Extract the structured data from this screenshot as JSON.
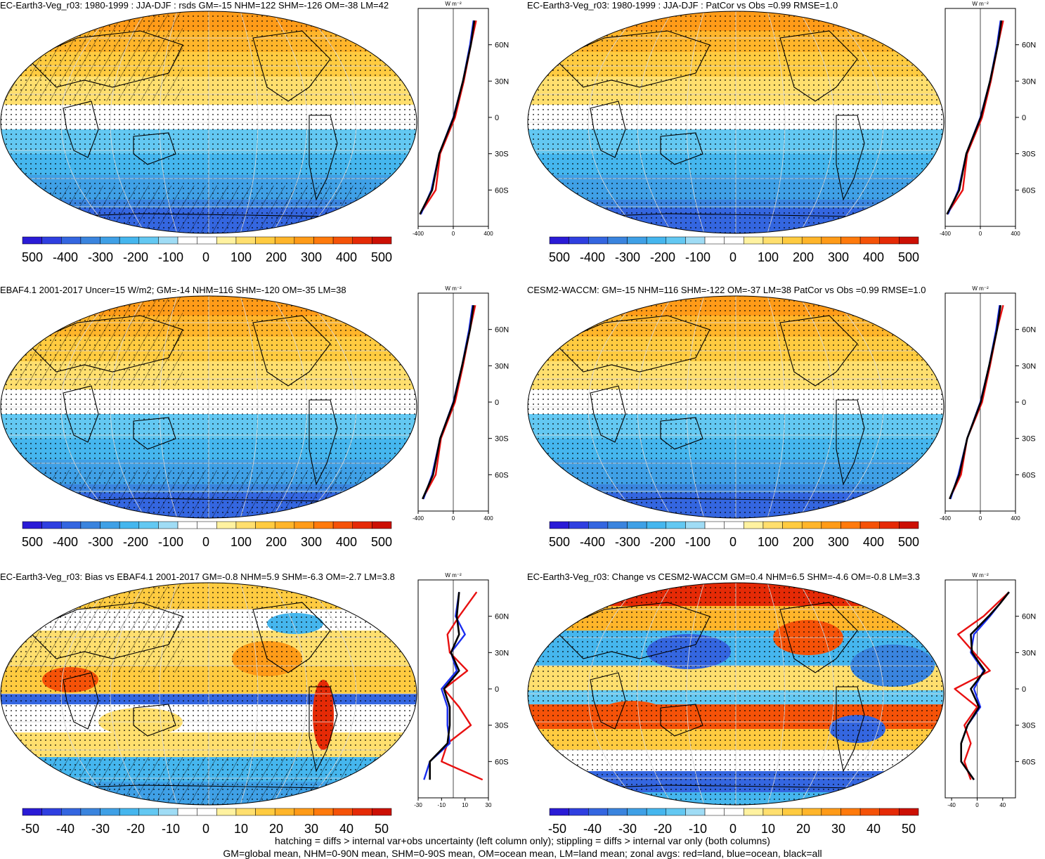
{
  "panels": [
    {
      "title": "EC-Earth3-Veg_r03: 1980-1999 : JJA-DJF : rsds GM=-15 NHM=122 SHM=-126 OM=-38 LM=42",
      "hatch": true,
      "scale": "large",
      "zonal_xticks": [
        "-400",
        "0",
        "400"
      ],
      "colorbar_labels": [
        "-500",
        "-400",
        "-300",
        "-200",
        "-100",
        "0",
        "100",
        "200",
        "300",
        "400",
        "500"
      ]
    },
    {
      "title": "EC-Earth3-Veg_r03: 1980-1999 : JJA-DJF : PatCor vs Obs =0.99 RMSE=1.0",
      "hatch": false,
      "scale": "large",
      "zonal_xticks": [
        "-400",
        "0",
        "400"
      ],
      "colorbar_labels": [
        "-500",
        "-400",
        "-300",
        "-200",
        "-100",
        "0",
        "100",
        "200",
        "300",
        "400",
        "500"
      ]
    },
    {
      "title": "EBAF4.1 2001-2017 Uncer=15 W/m2; GM=-14 NHM=116 SHM=-120 OM=-35 LM=38",
      "hatch": true,
      "scale": "large",
      "zonal_xticks": [
        "-400",
        "0",
        "400"
      ],
      "colorbar_labels": [
        "-500",
        "-400",
        "-300",
        "-200",
        "-100",
        "0",
        "100",
        "200",
        "300",
        "400",
        "500"
      ]
    },
    {
      "title": "CESM2-WACCM: GM=-15 NHM=116 SHM=-122 OM=-37 LM=38 PatCor vs Obs =0.99 RMSE=1.0",
      "hatch": false,
      "scale": "large",
      "zonal_xticks": [
        "-400",
        "0",
        "400"
      ],
      "colorbar_labels": [
        "-500",
        "-400",
        "-300",
        "-200",
        "-100",
        "0",
        "100",
        "200",
        "300",
        "400",
        "500"
      ]
    },
    {
      "title": "EC-Earth3-Veg_r03: Bias vs EBAF4.1 2001-2017 GM=-0.8 NHM=5.9 SHM=-6.3 OM=-2.7 LM=3.8",
      "hatch": true,
      "scale": "diff",
      "zonal_xticks": [
        "-30",
        "-10",
        "10",
        "30"
      ],
      "colorbar_labels": [
        "-50",
        "-40",
        "-30",
        "-20",
        "-10",
        "0",
        "10",
        "20",
        "30",
        "40",
        "50"
      ]
    },
    {
      "title": "EC-Earth3-Veg_r03: Change vs CESM2-WACCM GM=0.4 NHM=6.5 SHM=-4.6 OM=-0.8 LM=3.3",
      "hatch": false,
      "scale": "diff",
      "zonal_xticks": [
        "-40",
        "0",
        "40"
      ],
      "colorbar_labels": [
        "-50",
        "-40",
        "-30",
        "-20",
        "-10",
        "0",
        "10",
        "20",
        "30",
        "40",
        "50"
      ]
    }
  ],
  "zonal_units": "W m⁻²",
  "lat_labels": [
    "60N",
    "30N",
    "0",
    "30S",
    "60S"
  ],
  "palette": [
    "#2a1bd6",
    "#2f3fe0",
    "#3466e0",
    "#3a84de",
    "#3fa0e6",
    "#45b6ee",
    "#63c8f2",
    "#9fdcf5",
    "#ffffff",
    "#ffffff",
    "#fff2a0",
    "#ffdf6e",
    "#ffcb40",
    "#ffb52a",
    "#ff9b18",
    "#ff7a0c",
    "#f55208",
    "#e52a06",
    "#cc1004"
  ],
  "chart_data": [
    {
      "type": "heatmap",
      "panel": 1,
      "title": "EC-Earth3-Veg_r03: 1980-1999 : JJA-DJF : rsds GM=-15 NHM=122 SHM=-126 OM=-38 LM=42",
      "colorbar_range": [
        -500,
        500
      ],
      "zonal_mean": {
        "lat": [
          80,
          60,
          30,
          0,
          -30,
          -60,
          -80
        ],
        "land": [
          260,
          200,
          120,
          20,
          -150,
          -200,
          -380
        ],
        "ocean": [
          230,
          190,
          110,
          0,
          -160,
          -250,
          -370
        ],
        "all": [
          240,
          200,
          110,
          5,
          -160,
          -240,
          -380
        ]
      }
    },
    {
      "type": "heatmap",
      "panel": 2,
      "title": "EC-Earth3-Veg_r03: 1980-1999 : JJA-DJF : PatCor vs Obs =0.99 RMSE=1.0",
      "colorbar_range": [
        -500,
        500
      ],
      "zonal_mean": {
        "lat": [
          80,
          60,
          30,
          0,
          -30,
          -60,
          -80
        ],
        "land": [
          260,
          200,
          120,
          20,
          -150,
          -200,
          -380
        ],
        "ocean": [
          230,
          190,
          110,
          0,
          -160,
          -250,
          -370
        ],
        "all": [
          240,
          200,
          110,
          5,
          -160,
          -240,
          -380
        ]
      }
    },
    {
      "type": "heatmap",
      "panel": 3,
      "title": "EBAF4.1 2001-2017 Uncer=15 W/m2; GM=-14 NHM=116 SHM=-120 OM=-35 LM=38",
      "colorbar_range": [
        -500,
        500
      ],
      "zonal_mean": {
        "lat": [
          80,
          60,
          30,
          0,
          -30,
          -60,
          -80
        ],
        "land": [
          250,
          190,
          110,
          20,
          -140,
          -200,
          -350
        ],
        "ocean": [
          220,
          180,
          100,
          0,
          -150,
          -240,
          -340
        ],
        "all": [
          230,
          190,
          100,
          5,
          -150,
          -230,
          -350
        ]
      }
    },
    {
      "type": "heatmap",
      "panel": 4,
      "title": "CESM2-WACCM: GM=-15 NHM=116 SHM=-122 OM=-37 LM=38 PatCor vs Obs =0.99 RMSE=1.0",
      "colorbar_range": [
        -500,
        500
      ],
      "zonal_mean": {
        "lat": [
          80,
          60,
          30,
          0,
          -30,
          -60,
          -80
        ],
        "land": [
          260,
          190,
          110,
          20,
          -150,
          -220,
          -350
        ],
        "ocean": [
          220,
          180,
          100,
          0,
          -150,
          -250,
          -340
        ],
        "all": [
          230,
          190,
          100,
          5,
          -150,
          -240,
          -350
        ]
      }
    },
    {
      "type": "heatmap",
      "panel": 5,
      "title": "EC-Earth3-Veg_r03: Bias vs EBAF4.1 2001-2017 GM=-0.8 NHM=5.9 SHM=-6.3 OM=-2.7 LM=3.8",
      "colorbar_range": [
        -50,
        50
      ],
      "zonal_mean": {
        "lat": [
          80,
          60,
          45,
          30,
          15,
          0,
          -15,
          -30,
          -45,
          -60,
          -75
        ],
        "land": [
          20,
          5,
          -5,
          -3,
          12,
          -8,
          5,
          15,
          -5,
          -10,
          25
        ],
        "ocean": [
          5,
          2,
          10,
          -2,
          3,
          -10,
          -5,
          -5,
          -3,
          -20,
          -25
        ],
        "all": [
          5,
          3,
          5,
          -2,
          5,
          -8,
          -3,
          -3,
          -5,
          -20,
          -20
        ]
      }
    },
    {
      "type": "heatmap",
      "panel": 6,
      "title": "EC-Earth3-Veg_r03: Change vs CESM2-WACCM GM=0.4 NHM=6.5 SHM=-4.6 OM=-0.8 LM=3.3",
      "colorbar_range": [
        -50,
        50
      ],
      "zonal_mean": {
        "lat": [
          80,
          70,
          60,
          45,
          30,
          15,
          0,
          -15,
          -30,
          -45,
          -60,
          -75
        ],
        "land": [
          50,
          30,
          10,
          -30,
          -5,
          20,
          -35,
          0,
          -20,
          -10,
          -20,
          -10
        ],
        "ocean": [
          50,
          35,
          20,
          -5,
          -10,
          10,
          -5,
          5,
          -15,
          -25,
          -25,
          -5
        ],
        "all": [
          50,
          35,
          18,
          -10,
          -8,
          12,
          -10,
          3,
          -15,
          -25,
          -25,
          -5
        ]
      }
    }
  ],
  "footer": {
    "line1": "hatching = diffs > internal var+obs uncertainty (left column only); stippling = diffs > internal var only (both columns)",
    "line2": "GM=global mean, NHM=0-90N mean, SHM=0-90S mean, OM=ocean mean, LM=land mean; zonal avgs: red=land, blue=ocean, black=all"
  }
}
